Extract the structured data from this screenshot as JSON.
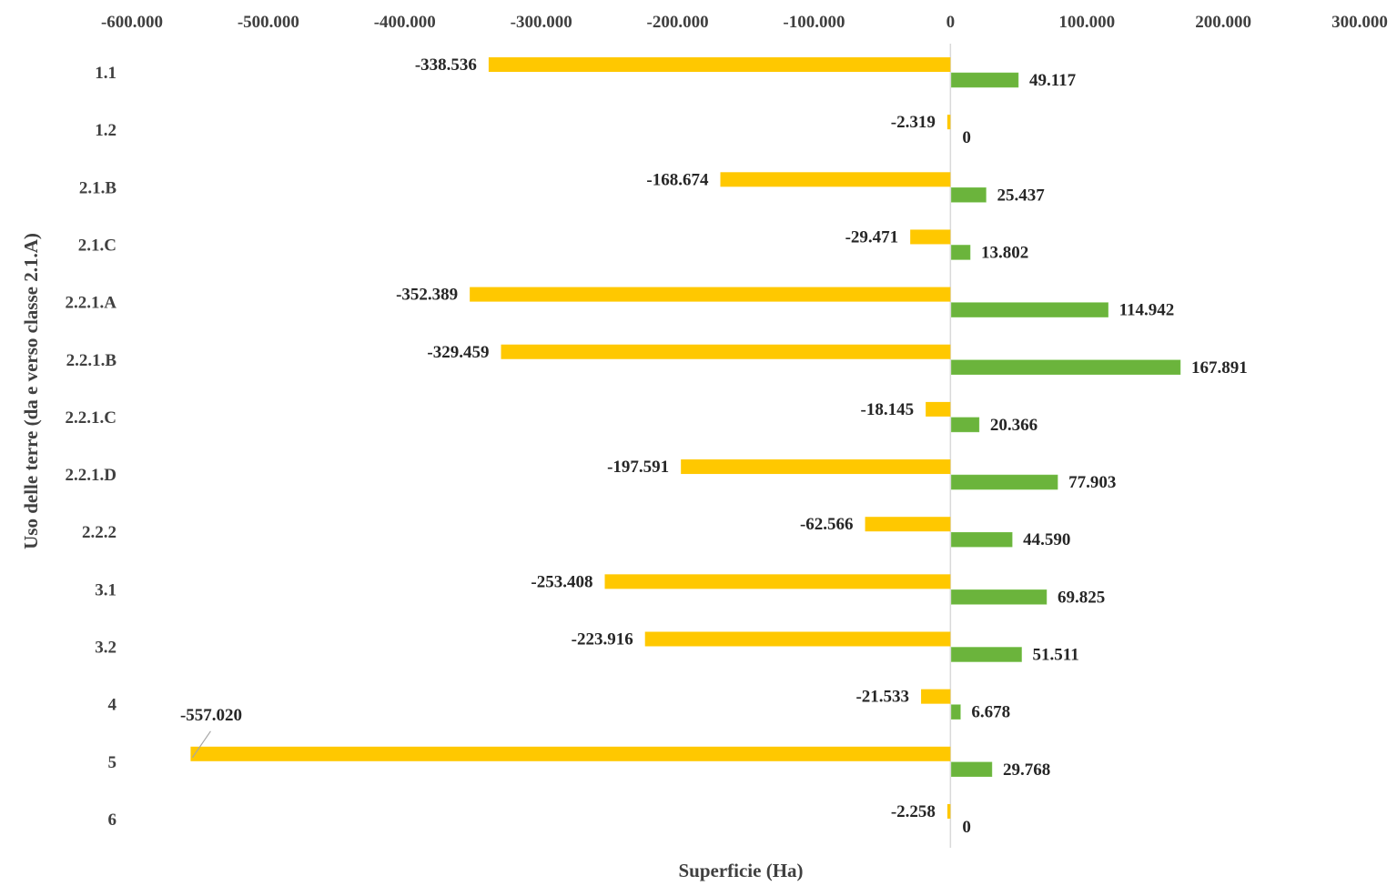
{
  "chart_data": {
    "type": "bar",
    "orientation": "horizontal",
    "title": "",
    "xlabel": "Superficie (Ha)",
    "ylabel": "Uso delle terre (da e verso classe 2.1.A)",
    "xlim": [
      -600,
      300
    ],
    "x_ticks": [
      -600,
      -500,
      -400,
      -300,
      -200,
      -100,
      0,
      100,
      200,
      300
    ],
    "x_tick_labels": [
      "-600.000",
      "-500.000",
      "-400.000",
      "-300.000",
      "-200.000",
      "-100.000",
      "0",
      "100.000",
      "200.000",
      "300.000"
    ],
    "x_axis_position": "top",
    "grid": false,
    "legend": "none",
    "categories": [
      "1.1",
      "1.2",
      "2.1.B",
      "2.1.C",
      "2.2.1.A",
      "2.2.1.B",
      "2.2.1.C",
      "2.2.1.D",
      "2.2.2",
      "3.1",
      "3.2",
      "4",
      "5",
      "6"
    ],
    "series": [
      {
        "name": "negative",
        "color": "#FFC800",
        "values": [
          -338.536,
          -2.319,
          -168.674,
          -29.471,
          -352.389,
          -329.459,
          -18.145,
          -197.591,
          -62.566,
          -253.408,
          -223.916,
          -21.533,
          -557.02,
          -2.258
        ],
        "labels": [
          "-338.536",
          "-2.319",
          "-168.674",
          "-29.471",
          "-352.389",
          "-329.459",
          "-18.145",
          "-197.591",
          "-62.566",
          "-253.408",
          "-223.916",
          "-21.533",
          "-557.020",
          "-2.258"
        ]
      },
      {
        "name": "positive",
        "color": "#6BB43C",
        "values": [
          49.117,
          0,
          25.437,
          13.802,
          114.942,
          167.891,
          20.366,
          77.903,
          44.59,
          69.825,
          51.511,
          6.678,
          29.768,
          0
        ],
        "labels": [
          "49.117",
          "0",
          "25.437",
          "13.802",
          "114.942",
          "167.891",
          "20.366",
          "77.903",
          "44.590",
          "69.825",
          "51.511",
          "6.678",
          "29.768",
          "0"
        ]
      }
    ],
    "annotations": [
      {
        "text": "-557.020",
        "category": "5",
        "series": "negative",
        "has_leader_line": true
      }
    ],
    "colors": {
      "axis_line": "#D9D9D9",
      "leader_line": "#A6A6A6",
      "text": "#404040"
    }
  }
}
